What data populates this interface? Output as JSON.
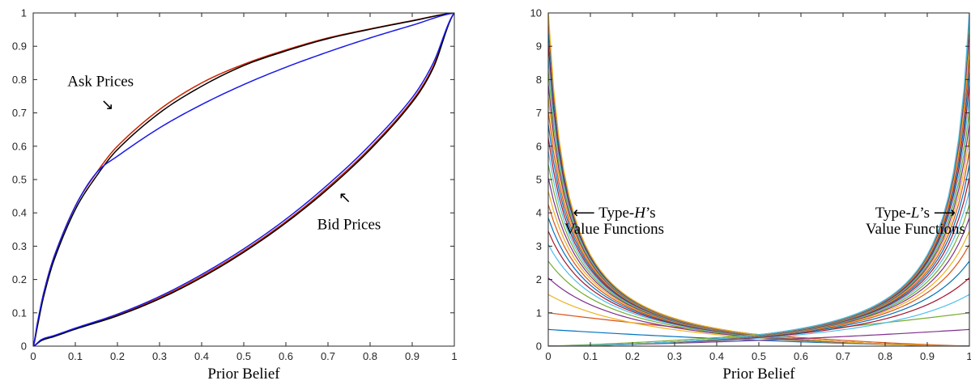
{
  "chart_data": [
    {
      "type": "line",
      "xlabel": "Prior Belief",
      "ylabel": "",
      "xlim": [
        0,
        1
      ],
      "ylim": [
        0,
        1
      ],
      "grid": false,
      "xticks": [
        "0",
        "0.1",
        "0.2",
        "0.3",
        "0.4",
        "0.5",
        "0.6",
        "0.7",
        "0.8",
        "0.9",
        "1"
      ],
      "yticks": [
        "0",
        "0.1",
        "0.2",
        "0.3",
        "0.4",
        "0.5",
        "0.6",
        "0.7",
        "0.8",
        "0.9",
        "1"
      ],
      "annotations": [
        {
          "text": "Ask Prices",
          "x": 0.16,
          "y": 0.795,
          "arrow_to": [
            0.18,
            0.72
          ]
        },
        {
          "text": "Bid Prices",
          "x": 0.75,
          "y": 0.365,
          "arrow_to": [
            0.74,
            0.445
          ]
        }
      ],
      "series": [
        {
          "color": "#cc2200",
          "x": [
            0,
            0.01,
            0.025,
            0.05,
            0.1,
            0.15,
            0.2,
            0.3,
            0.4,
            0.5,
            0.6,
            0.7,
            0.8,
            0.9,
            1.0
          ],
          "y": [
            0,
            0.06,
            0.16,
            0.27,
            0.42,
            0.52,
            0.6,
            0.71,
            0.79,
            0.846,
            0.889,
            0.925,
            0.952,
            0.977,
            1.0
          ]
        },
        {
          "color": "#000000",
          "x": [
            0,
            0.01,
            0.025,
            0.05,
            0.1,
            0.15,
            0.2,
            0.3,
            0.4,
            0.5,
            0.6,
            0.7,
            0.8,
            0.9,
            1.0
          ],
          "y": [
            0,
            0.06,
            0.15,
            0.26,
            0.41,
            0.51,
            0.59,
            0.7,
            0.78,
            0.842,
            0.886,
            0.923,
            0.951,
            0.976,
            1.0
          ]
        },
        {
          "color": "#1a1ae6",
          "x": [
            0,
            0.01,
            0.025,
            0.05,
            0.1,
            0.15,
            0.2,
            0.3,
            0.4,
            0.5,
            0.6,
            0.7,
            0.8,
            0.9,
            1.0
          ],
          "y": [
            0,
            0.07,
            0.16,
            0.27,
            0.42,
            0.52,
            0.57,
            0.655,
            0.725,
            0.785,
            0.837,
            0.883,
            0.925,
            0.963,
            1.0
          ]
        },
        {
          "color": "#cc2200",
          "x": [
            0,
            0.02,
            0.05,
            0.1,
            0.2,
            0.3,
            0.4,
            0.5,
            0.6,
            0.7,
            0.8,
            0.9,
            0.95,
            1.0
          ],
          "y": [
            0,
            0.018,
            0.03,
            0.052,
            0.093,
            0.145,
            0.21,
            0.286,
            0.374,
            0.477,
            0.595,
            0.737,
            0.84,
            1.0
          ]
        },
        {
          "color": "#000000",
          "x": [
            0,
            0.02,
            0.05,
            0.1,
            0.2,
            0.3,
            0.4,
            0.5,
            0.6,
            0.7,
            0.8,
            0.9,
            0.95,
            1.0
          ],
          "y": [
            0,
            0.017,
            0.029,
            0.051,
            0.091,
            0.142,
            0.206,
            0.282,
            0.37,
            0.472,
            0.59,
            0.732,
            0.835,
            1.0
          ]
        },
        {
          "color": "#1a1ae6",
          "x": [
            0,
            0.02,
            0.05,
            0.1,
            0.2,
            0.3,
            0.4,
            0.5,
            0.6,
            0.7,
            0.8,
            0.9,
            0.95,
            1.0
          ],
          "y": [
            0,
            0.02,
            0.032,
            0.054,
            0.096,
            0.149,
            0.215,
            0.292,
            0.381,
            0.485,
            0.604,
            0.746,
            0.85,
            1.0
          ]
        }
      ]
    },
    {
      "type": "line",
      "xlabel": "Prior Belief",
      "ylabel": "",
      "xlim": [
        0,
        1
      ],
      "ylim": [
        0,
        10
      ],
      "grid": false,
      "xticks": [
        "0",
        "0.1",
        "0.2",
        "0.3",
        "0.4",
        "0.5",
        "0.6",
        "0.7",
        "0.8",
        "0.9",
        "1"
      ],
      "yticks": [
        "0",
        "1",
        "2",
        "3",
        "4",
        "5",
        "6",
        "7",
        "8",
        "9",
        "10"
      ],
      "annotations": [
        {
          "arrow": "⟵",
          "parts": [
            {
              "t": " Type-"
            },
            {
              "t": "H",
              "italic": true
            },
            {
              "t": "’s"
            }
          ],
          "line2": "Value Functions",
          "x": 0.08,
          "y": 4
        },
        {
          "parts": [
            {
              "t": "Type-"
            },
            {
              "t": "L",
              "italic": true
            },
            {
              "t": "’s "
            }
          ],
          "arrow": "⟶",
          "line2": "Value Functions",
          "x": 0.92,
          "y": 4
        }
      ],
      "family_H": {
        "description": "decreasing in prior belief, diverging at 0",
        "scales": [
          0.5,
          1.0,
          1.5,
          2.0,
          2.5,
          3.0,
          3.4,
          3.8,
          4.2,
          4.6,
          5.0,
          5.4,
          5.8,
          6.2,
          6.6,
          7.0,
          7.4,
          7.8,
          8.2,
          8.6,
          9.0,
          9.4,
          9.8,
          10.0
        ],
        "values_at": {
          "x": [
            0,
            0.1,
            0.2,
            0.3,
            0.4,
            0.5,
            0.6,
            0.7,
            0.8,
            0.9,
            1.0
          ]
        }
      },
      "family_L": {
        "description": "increasing in prior belief, diverging at 1",
        "scales": [
          0.5,
          1.0,
          1.5,
          2.0,
          2.5,
          3.0,
          3.4,
          3.8,
          4.2,
          4.6,
          5.0,
          5.4,
          5.8,
          6.2,
          6.6,
          7.0,
          7.4,
          7.8,
          8.2,
          8.6,
          9.0,
          9.4,
          9.8,
          10.0
        ]
      },
      "palette": [
        "#0072bd",
        "#d95319",
        "#edb120",
        "#7e2f8e",
        "#77ac30",
        "#4dbeee",
        "#a2142f"
      ]
    }
  ]
}
